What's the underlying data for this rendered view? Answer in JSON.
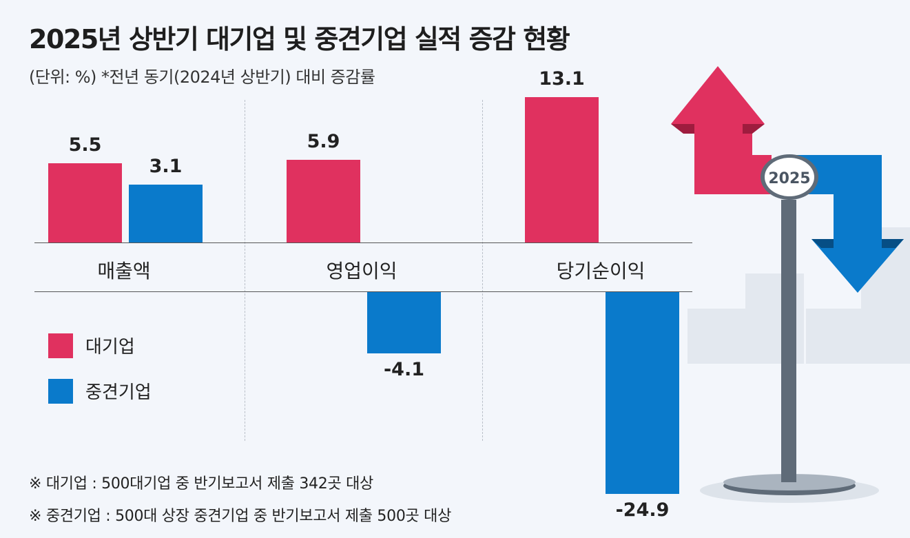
{
  "chart_data": {
    "type": "bar",
    "title": "2025년 상반기 대기업 및 중견기업 실적 증감 현황",
    "subtitle": "(단위: %)  *전년 동기(2024년 상반기) 대비 증감률",
    "categories": [
      "매출액",
      "영업이익",
      "당기순이익"
    ],
    "series": [
      {
        "name": "대기업",
        "color": "#e0315f",
        "values": [
          5.5,
          5.9,
          13.1
        ]
      },
      {
        "name": "중견기업",
        "color": "#0a7acb",
        "values": [
          3.1,
          -4.1,
          -24.9
        ]
      }
    ],
    "value_labels": [
      [
        "5.5",
        "5.9",
        "13.1"
      ],
      [
        "3.1",
        "-4.1",
        "-24.9"
      ]
    ],
    "legend": "left-middle",
    "grid": false
  },
  "notes": [
    "※ 대기업 : 500대기업 중 반기보고서 제출 342곳 대상",
    "※ 중견기업 : 500대 상장 중견기업 중 반기보고서 제출 500곳 대상"
  ],
  "illustration": {
    "badge": "2025",
    "icon": "up-down-arrows-signpost"
  }
}
